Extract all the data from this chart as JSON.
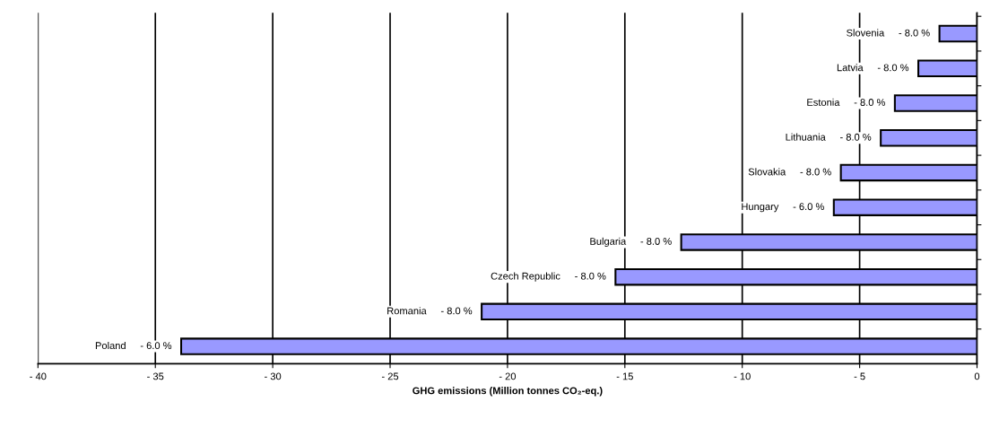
{
  "chart_data": {
    "type": "bar",
    "orientation": "horizontal",
    "categories": [
      "Slovenia",
      "Latvia",
      "Estonia",
      "Lithuania",
      "Slovakia",
      "Hungary",
      "Bulgaria",
      "Czech Republic",
      "Romania",
      "Poland"
    ],
    "values": [
      -1.6,
      -2.5,
      -3.5,
      -4.1,
      -5.8,
      -6.1,
      -12.6,
      -15.4,
      -21.1,
      -33.9
    ],
    "annotations": [
      {
        "text": "- 8.0 %",
        "x": -1.6,
        "y": "Slovenia"
      },
      {
        "text": "- 8.0 %",
        "x": -2.5,
        "y": "Latvia"
      },
      {
        "text": "- 8.0 %",
        "x": -3.5,
        "y": "Estonia"
      },
      {
        "text": "- 8.0 %",
        "x": -4.1,
        "y": "Lithuania"
      },
      {
        "text": "- 8.0 %",
        "x": -5.8,
        "y": "Slovakia"
      },
      {
        "text": "- 6.0 %",
        "x": -6.1,
        "y": "Hungary"
      },
      {
        "text": "- 8.0 %",
        "x": -12.6,
        "y": "Bulgaria"
      },
      {
        "text": "- 8.0 %",
        "x": -15.4,
        "y": "Czech Republic"
      },
      {
        "text": "- 8.0 %",
        "x": -21.1,
        "y": "Romania"
      },
      {
        "text": "- 6.0 %",
        "x": -33.9,
        "y": "Poland"
      }
    ],
    "color": "#9999ff",
    "xlabel": "GHG emissions (Million tonnes CO₂-eq.)",
    "xlim": [
      -40,
      0
    ],
    "xticks": [
      {
        "value": -40,
        "label": "- 40"
      },
      {
        "value": -35,
        "label": "- 35"
      },
      {
        "value": -30,
        "label": "- 30"
      },
      {
        "value": -25,
        "label": "- 25"
      },
      {
        "value": -20,
        "label": "- 20"
      },
      {
        "value": -15,
        "label": "- 15"
      },
      {
        "value": -10,
        "label": "- 10"
      },
      {
        "value": -5,
        "label": "- 5"
      },
      0
    ],
    "grid": "x",
    "legend": false
  }
}
